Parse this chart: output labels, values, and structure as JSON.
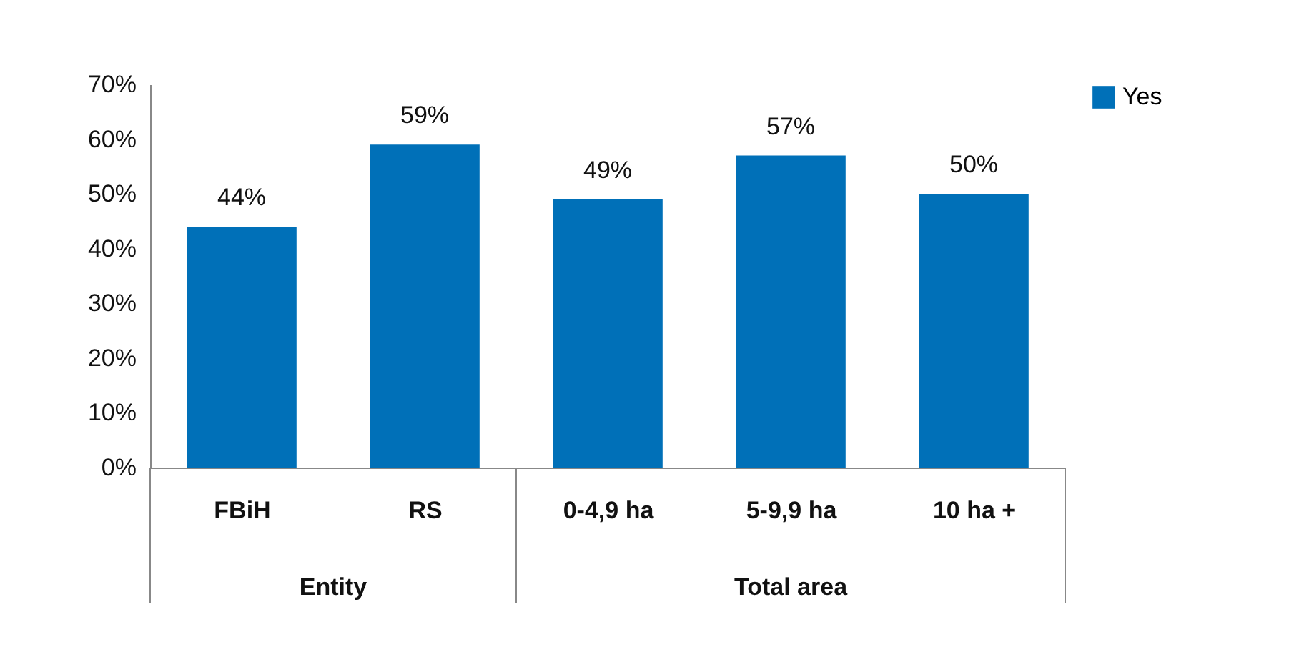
{
  "chart_data": {
    "type": "bar",
    "categories": [
      "FBiH",
      "RS",
      "0-4,9 ha",
      "5-9,9 ha",
      "10 ha +"
    ],
    "series": [
      {
        "name": "Yes",
        "color": "#0070b8",
        "values": [
          44,
          59,
          49,
          57,
          50
        ],
        "value_labels": [
          "44%",
          "59%",
          "49%",
          "57%",
          "50%"
        ]
      }
    ],
    "ylim": [
      0,
      70
    ],
    "yticks": [
      {
        "value": 0,
        "label": "0%"
      },
      {
        "value": 10,
        "label": "10%"
      },
      {
        "value": 20,
        "label": "20%"
      },
      {
        "value": 30,
        "label": "30%"
      },
      {
        "value": 40,
        "label": "40%"
      },
      {
        "value": 50,
        "label": "50%"
      },
      {
        "value": 60,
        "label": "60%"
      },
      {
        "value": 70,
        "label": "70%"
      }
    ],
    "annotations": [
      "Entity",
      "Total area"
    ],
    "grid": false,
    "legend": "right"
  }
}
